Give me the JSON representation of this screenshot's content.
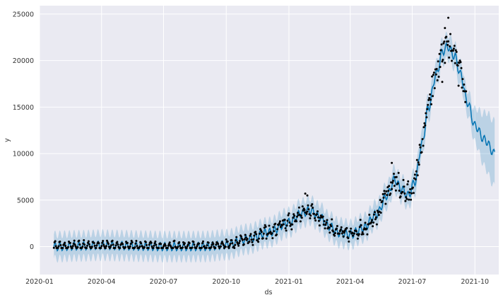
{
  "chart_data": {
    "type": "line",
    "title": "",
    "xlabel": "ds",
    "ylabel": "y",
    "x_range": [
      "2020-01-01",
      "2021-11-05"
    ],
    "ylim": [
      -3000,
      25900
    ],
    "x_ticks": [
      "2020-01-01",
      "2020-04-01",
      "2020-07-01",
      "2020-10-01",
      "2021-01-01",
      "2021-04-01",
      "2021-07-01",
      "2021-10-01"
    ],
    "x_tick_labels": [
      "2020-01",
      "2020-04",
      "2020-07",
      "2020-10",
      "2021-01",
      "2021-04",
      "2021-07",
      "2021-10"
    ],
    "y_ticks": [
      0,
      5000,
      10000,
      15000,
      20000,
      25000
    ],
    "y_tick_labels": [
      "0",
      "5000",
      "10000",
      "15000",
      "20000",
      "25000"
    ],
    "grid": true,
    "colors": {
      "background": "#eaeaf2",
      "grid": "#ffffff",
      "forecast": "#0072b2",
      "interval": "#0072b2",
      "observed": "#000000"
    },
    "forecast_start": "2020-01-22",
    "forecast_end": "2021-10-30",
    "history_end": "2021-09-18",
    "forecast_knots": [
      [
        "2020-01-22",
        0
      ],
      [
        "2020-03-01",
        80
      ],
      [
        "2020-04-01",
        150
      ],
      [
        "2020-05-01",
        100
      ],
      [
        "2020-06-01",
        50
      ],
      [
        "2020-07-01",
        0
      ],
      [
        "2020-08-01",
        0
      ],
      [
        "2020-09-01",
        20
      ],
      [
        "2020-10-01",
        200
      ],
      [
        "2020-11-01",
        800
      ],
      [
        "2020-12-01",
        1500
      ],
      [
        "2021-01-01",
        2600
      ],
      [
        "2021-01-20",
        3600
      ],
      [
        "2021-02-01",
        3900
      ],
      [
        "2021-02-15",
        3200
      ],
      [
        "2021-03-01",
        2200
      ],
      [
        "2021-03-15",
        1500
      ],
      [
        "2021-04-01",
        1300
      ],
      [
        "2021-04-20",
        2000
      ],
      [
        "2021-05-10",
        3500
      ],
      [
        "2021-05-25",
        5500
      ],
      [
        "2021-06-05",
        7200
      ],
      [
        "2021-06-15",
        6200
      ],
      [
        "2021-06-25",
        5500
      ],
      [
        "2021-07-05",
        7000
      ],
      [
        "2021-07-15",
        11000
      ],
      [
        "2021-07-25",
        15000
      ],
      [
        "2021-08-05",
        18500
      ],
      [
        "2021-08-15",
        21000
      ],
      [
        "2021-08-22",
        21500
      ],
      [
        "2021-09-01",
        20500
      ],
      [
        "2021-09-10",
        18500
      ],
      [
        "2021-09-20",
        15500
      ],
      [
        "2021-10-01",
        13000
      ],
      [
        "2021-10-15",
        11500
      ],
      [
        "2021-10-30",
        10000
      ]
    ],
    "interval_halfwidth": [
      [
        "2020-01-22",
        1300
      ],
      [
        "2021-09-18",
        1300
      ],
      [
        "2021-10-30",
        3500
      ]
    ],
    "weekly_amplitude": 450,
    "observed_noise": [
      [
        "2020-01-22",
        200
      ],
      [
        "2020-10-01",
        300
      ],
      [
        "2021-01-01",
        700
      ],
      [
        "2021-04-01",
        600
      ],
      [
        "2021-06-01",
        1200
      ],
      [
        "2021-08-01",
        2000
      ],
      [
        "2021-09-18",
        1500
      ]
    ],
    "observed_peaks": [
      [
        "2021-01-25",
        5700
      ],
      [
        "2021-01-28",
        5500
      ],
      [
        "2021-06-01",
        9000
      ],
      [
        "2021-08-23",
        24600
      ],
      [
        "2021-08-18",
        23500
      ],
      [
        "2021-08-14",
        17700
      ],
      [
        "2021-09-07",
        17300
      ]
    ]
  }
}
